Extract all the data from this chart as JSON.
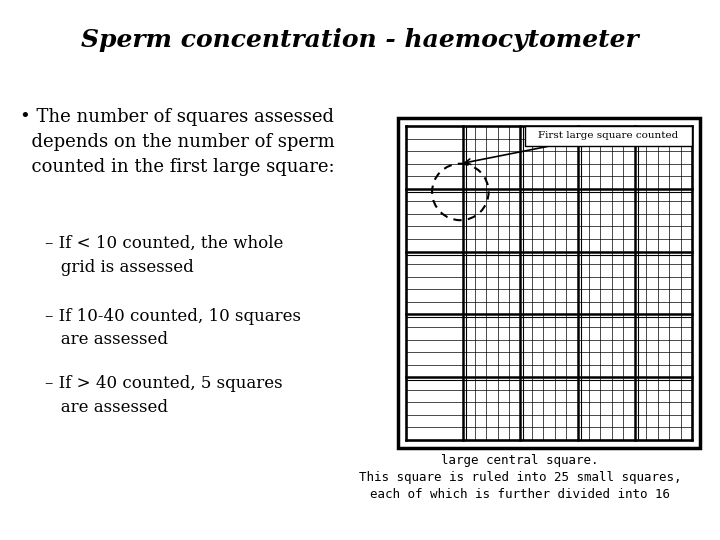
{
  "title": "Sperm concentration - haemocytometer",
  "title_fontsize": 18,
  "bullet_main": "• The number of squares assessed\n  depends on the number of sperm\n  counted in the first large square:",
  "sub_bullet1": "– If < 10 counted, the whole\n   grid is assessed",
  "sub_bullet2": "– If 10-40 counted, 10 squares\n   are assessed",
  "sub_bullet3": "– If > 40 counted, 5 squares\n   are assessed",
  "caption": "large central square.\nThis square is ruled into 25 small squares,\neach of which is further divided into 16",
  "annotation": "First large square counted",
  "text_fontsize": 13,
  "sub_fontsize": 12,
  "caption_fontsize": 9
}
